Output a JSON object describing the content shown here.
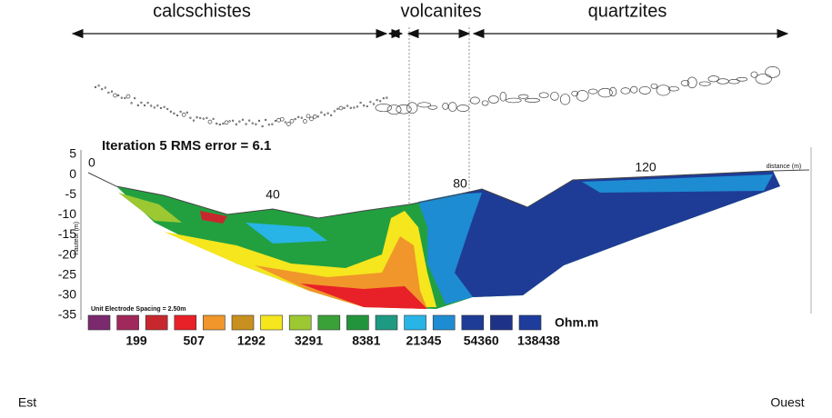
{
  "units": [
    "calcschistes",
    "volcanites",
    "quartzites"
  ],
  "section": {
    "title": "Iteration 5 RMS error = 6.1",
    "y_label": "hauteur (m)",
    "yticks": [
      5,
      0,
      -5,
      -10,
      -15,
      -20,
      -25,
      -30,
      -35
    ],
    "xticks": [
      0,
      40,
      80,
      120
    ],
    "x_label": "distance (m)",
    "spacing_note": "Unit Electrode Spacing = 2.50m"
  },
  "legend": {
    "values": [
      199,
      507,
      1292,
      3291,
      8381,
      21345,
      54360,
      138438
    ],
    "unit": "Ohm.m"
  },
  "orientation": {
    "left": "Est",
    "right": "Ouest"
  }
}
